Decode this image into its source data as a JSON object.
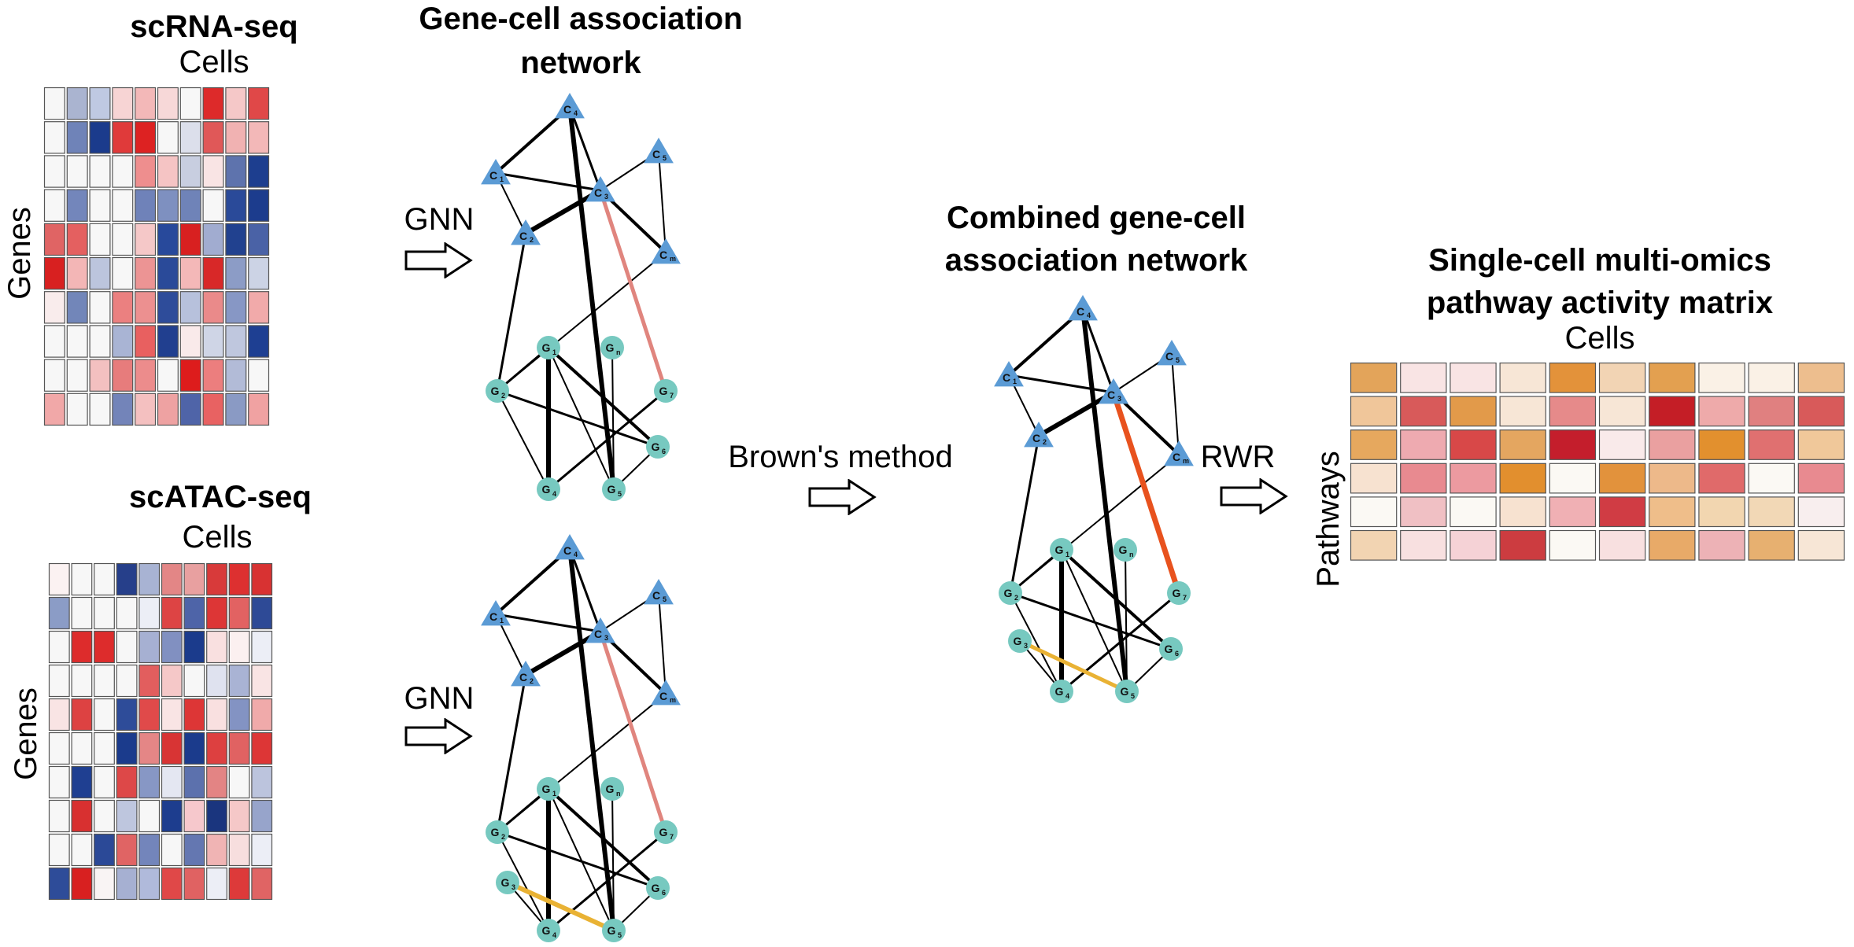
{
  "scrna": {
    "title": "scRNA-seq",
    "col_label": "Cells",
    "row_label": "Genes",
    "cells": [
      [
        "#f7f7f7",
        "#aab4d0",
        "#bfc9e2",
        "#f7d4d4",
        "#f3b8b8",
        "#f7d8d8",
        "#f7f7f7",
        "#dd2a2a",
        "#f5c8c8",
        "#e04848"
      ],
      [
        "#f7f7f7",
        "#6f83b8",
        "#1b3b8c",
        "#e03a3a",
        "#dd2222",
        "#f7f7f7",
        "#dcdfeb",
        "#e05858",
        "#f1b2b2",
        "#f3b8b8"
      ],
      [
        "#f7f7f7",
        "#f7f7f7",
        "#f7f7f7",
        "#f7f7f7",
        "#ee8e8e",
        "#f5c4c4",
        "#c8cee0",
        "#f9e4e4",
        "#5e73ad",
        "#1d3e8f"
      ],
      [
        "#f7f7f7",
        "#7386bb",
        "#f7f7f7",
        "#f7f7f7",
        "#6f82b9",
        "#7e90c0",
        "#6f83b8",
        "#f7f7f7",
        "#2a4a99",
        "#1c3c8d"
      ],
      [
        "#e06464",
        "#e46060",
        "#f7f7f7",
        "#f7f7f7",
        "#f5c8c8",
        "#28499b",
        "#d82020",
        "#a1acd0",
        "#21418f",
        "#4a62a6"
      ],
      [
        "#d82020",
        "#f3b6b6",
        "#bcc5dd",
        "#f7f7f7",
        "#ec9494",
        "#2a4a99",
        "#f4b8b8",
        "#d82828",
        "#8c9cc6",
        "#ccd3e5"
      ],
      [
        "#f9ecec",
        "#7286b9",
        "#f7f7f7",
        "#eb8080",
        "#ec9090",
        "#2e4c9a",
        "#b7c1dc",
        "#ea8a8a",
        "#8797c5",
        "#f1aaaa"
      ],
      [
        "#f7f7f7",
        "#f7f7f7",
        "#f7f7f7",
        "#a9b4d4",
        "#e86060",
        "#213f8f",
        "#f9eaea",
        "#cfd5e6",
        "#bfc7de",
        "#1e3f92"
      ],
      [
        "#f7f7f7",
        "#f7f7f7",
        "#f3c0c0",
        "#e77c7c",
        "#ec8c8c",
        "#f7f7f7",
        "#dd1c1c",
        "#ec7e7e",
        "#b2bbd7",
        "#f7f7f7"
      ],
      [
        "#f1a8a8",
        "#f7f7f7",
        "#f7f7f7",
        "#7384b9",
        "#f4c0c0",
        "#eea2a2",
        "#4f64a8",
        "#e86262",
        "#8a9ac4",
        "#f0a2a2"
      ]
    ]
  },
  "scatac": {
    "title": "scATAC-seq",
    "col_label": "Cells",
    "row_label": "Genes",
    "cells": [
      [
        "#fbf2f2",
        "#f7f7f7",
        "#f7f7f7",
        "#263f8a",
        "#a8b3d3",
        "#e38686",
        "#e8a0a0",
        "#d83a3a",
        "#dd3030",
        "#d83232"
      ],
      [
        "#8b9cc6",
        "#f7f7f7",
        "#f7f7f7",
        "#f7f7f7",
        "#eceef6",
        "#dd4444",
        "#4e64a8",
        "#dd3636",
        "#e26262",
        "#2e4a96"
      ],
      [
        "#f7f7f7",
        "#dd2c2c",
        "#dd2c2c",
        "#f7f7f7",
        "#a6b0d2",
        "#8190c1",
        "#1b3b8c",
        "#f9e0e0",
        "#fbf0f0",
        "#eceef6"
      ],
      [
        "#f7f7f7",
        "#f7f7f7",
        "#f7f7f7",
        "#f7f7f7",
        "#e25e5e",
        "#f5c8c8",
        "#f7f7f7",
        "#dfe2ef",
        "#a9b3d4",
        "#f9e4e4"
      ],
      [
        "#f9e4e4",
        "#dd4242",
        "#f7f7f7",
        "#2e4c99",
        "#e04a4a",
        "#f9e4e4",
        "#dd3636",
        "#f9e0e0",
        "#8393c3",
        "#f0aaaa"
      ],
      [
        "#f7f7f7",
        "#f7f7f7",
        "#f7f7f7",
        "#1b3b8c",
        "#e48686",
        "#d83434",
        "#1b3b8c",
        "#dd4040",
        "#e06262",
        "#dd3636"
      ],
      [
        "#f7f7f7",
        "#1f3f91",
        "#f7f7f7",
        "#dd4848",
        "#8797c5",
        "#e4e7f2",
        "#5c71ad",
        "#e38484",
        "#f7f7f7",
        "#bcc4dd"
      ],
      [
        "#f7f7f7",
        "#d83030",
        "#f7f7f7",
        "#bec6de",
        "#f7f7f7",
        "#1d3d8e",
        "#f6c8cc",
        "#1a357e",
        "#f5c8c8",
        "#97a4cb"
      ],
      [
        "#f7f7f7",
        "#f7f7f7",
        "#2b4997",
        "#e06464",
        "#7385bb",
        "#f7f7f7",
        "#6477b1",
        "#f0b4b4",
        "#f7dede",
        "#eceef6"
      ],
      [
        "#2e4c99",
        "#d82020",
        "#f9f4f4",
        "#a6b0d2",
        "#b0badb",
        "#e04848",
        "#e06262",
        "#eceef6",
        "#dd3a3a",
        "#e06464"
      ]
    ]
  },
  "network1": {
    "title_line1": "Gene-cell association",
    "title_line2": "network",
    "arrow_label": "GNN"
  },
  "network2": {
    "arrow_label": "GNN"
  },
  "combined": {
    "arrow_label": "Brown's method",
    "title_line1": "Combined gene-cell",
    "title_line2": "association network"
  },
  "pathway": {
    "arrow_label": "RWR",
    "title_line1": "Single-cell multi-omics",
    "title_line2": "pathway activity matrix",
    "col_label": "Cells",
    "row_label": "Pathways",
    "cells": [
      [
        "#e3a45a",
        "#f9e4e4",
        "#f9e4e4",
        "#f7e6d6",
        "#e3923a",
        "#f2d4b4",
        "#e3a050",
        "#faf1e6",
        "#faf1e6",
        "#edbe8e"
      ],
      [
        "#f0c69a",
        "#d85a5a",
        "#e29a4a",
        "#f7e6d6",
        "#e68a8a",
        "#f7e6d6",
        "#c41e26",
        "#eeaaaa",
        "#e08080",
        "#d85a5a"
      ],
      [
        "#e6a85e",
        "#eeaab0",
        "#d84848",
        "#e4a660",
        "#c41e2c",
        "#f9eaea",
        "#eaa0a0",
        "#e2902e",
        "#e07070",
        "#f0c89a"
      ],
      [
        "#f7e2d0",
        "#e88a90",
        "#ec9aa0",
        "#e28f2e",
        "#fbf9f4",
        "#e2923c",
        "#edb98a",
        "#e06a6a",
        "#fbf9f4",
        "#e88a90"
      ],
      [
        "#fbf9f4",
        "#f0c0c4",
        "#fbf9f4",
        "#f7e2d0",
        "#f0b0b4",
        "#d03c44",
        "#efbe8a",
        "#f2d6b0",
        "#f2d8b6",
        "#f8eeee"
      ],
      [
        "#f2d4b2",
        "#f8e0e0",
        "#f5d2d6",
        "#cc3c40",
        "#fbf9f4",
        "#f8e0e0",
        "#e8aa68",
        "#edb2b6",
        "#e7b070",
        "#f7e6d6"
      ]
    ]
  },
  "node_labels": {
    "c4": "C4",
    "c1": "C1",
    "c5": "C5",
    "c3": "C3",
    "c2": "C2",
    "cm": "Cm",
    "g1": "G1",
    "gn": "Gn",
    "g2": "G2",
    "g7": "G7",
    "g6": "G6",
    "g4": "G4",
    "g5": "G5",
    "g3": "G3"
  },
  "colors": {
    "cell_node": "#5b9bd5",
    "gene_node": "#77c9c0",
    "edge_default": "#000000",
    "edge_pink": "#e0857e",
    "edge_orange_red": "#e8521e",
    "edge_yellow": "#e9b234"
  }
}
